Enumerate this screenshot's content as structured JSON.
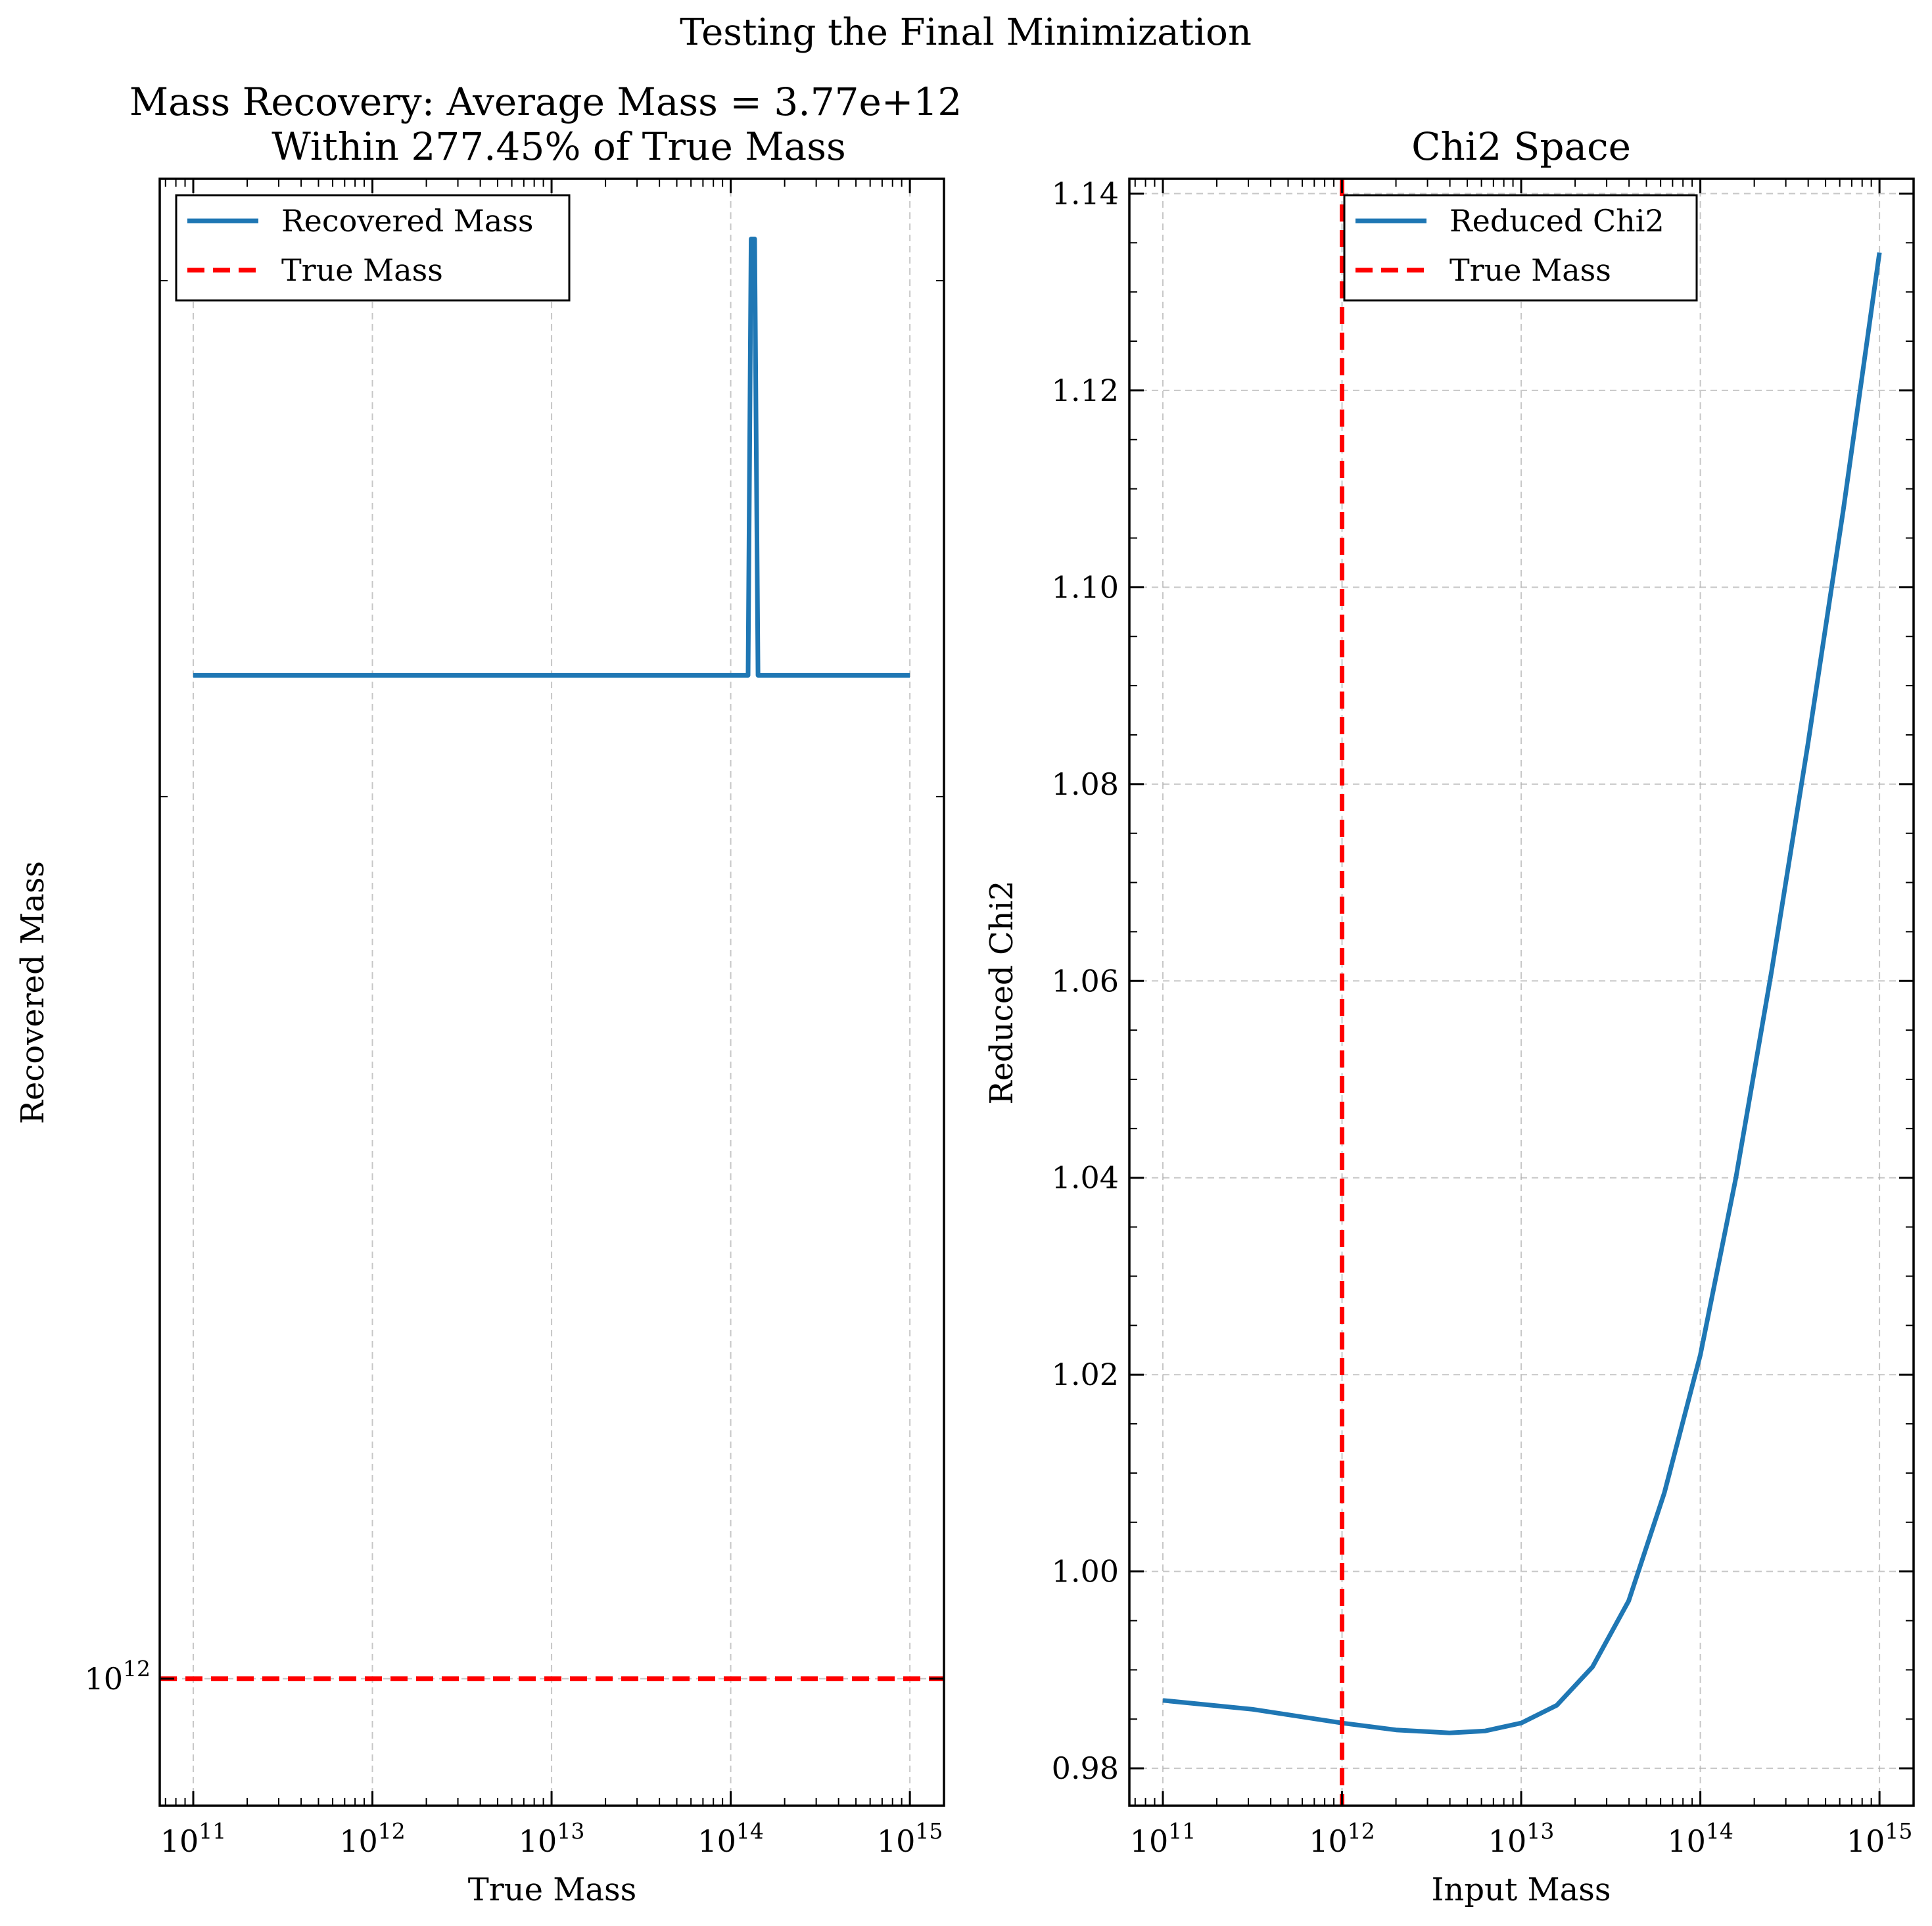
{
  "suptitle": "Testing the Final Minimization",
  "colors": {
    "series": "#1f77b4",
    "true_mass": "#ff0000",
    "grid": "#b0b0b0",
    "axes": "#000000"
  },
  "chart_data": [
    {
      "type": "line",
      "title_line1": "Mass Recovery: Average Mass = 3.77e+12",
      "title_line2": "Within 277.45% of True Mass",
      "xlabel": "True Mass",
      "ylabel": "Recovered Mass",
      "xscale": "log",
      "yscale": "log",
      "xlim": [
        65000000000.0,
        1550000000000000.0
      ],
      "ylim": [
        905000000000.0,
        3250000000000.0
      ],
      "xticks": [
        100000000000.0,
        1000000000000.0,
        10000000000000.0,
        100000000000000.0,
        1000000000000000.0
      ],
      "xtick_labels": [
        {
          "base": "10",
          "exp": "11"
        },
        {
          "base": "10",
          "exp": "12"
        },
        {
          "base": "10",
          "exp": "13"
        },
        {
          "base": "10",
          "exp": "14"
        },
        {
          "base": "10",
          "exp": "15"
        }
      ],
      "yticks": [
        1000000000000.0
      ],
      "ytick_labels": [
        {
          "base": "10",
          "exp": "12"
        }
      ],
      "grid": true,
      "legend_position": "upper left",
      "series": [
        {
          "name": "Recovered Mass",
          "style": "solid",
          "x": [
            100000000000.0,
            125000000000000.0,
            130000000000000.0,
            136000000000000.0,
            142000000000000.0,
            1000000000000000.0
          ],
          "y": [
            2200000000000.0,
            2200000000000.0,
            3100000000000.0,
            3100000000000.0,
            2200000000000.0,
            2200000000000.0
          ]
        }
      ],
      "hlines": [
        {
          "name": "True Mass",
          "style": "dashed",
          "y": 1000000000000.0
        }
      ]
    },
    {
      "type": "line",
      "title": "Chi2 Space",
      "xlabel": "Input Mass",
      "ylabel": "Reduced Chi2",
      "xscale": "log",
      "yscale": "linear",
      "xlim": [
        65000000000.0,
        1550000000000000.0
      ],
      "ylim": [
        0.9762,
        1.1415
      ],
      "xticks": [
        100000000000.0,
        1000000000000.0,
        10000000000000.0,
        100000000000000.0,
        1000000000000000.0
      ],
      "xtick_labels": [
        {
          "base": "10",
          "exp": "11"
        },
        {
          "base": "10",
          "exp": "12"
        },
        {
          "base": "10",
          "exp": "13"
        },
        {
          "base": "10",
          "exp": "14"
        },
        {
          "base": "10",
          "exp": "15"
        }
      ],
      "yticks": [
        0.98,
        1.0,
        1.02,
        1.04,
        1.06,
        1.08,
        1.1,
        1.12,
        1.14
      ],
      "ytick_labels": [
        "0.98",
        "1.00",
        "1.02",
        "1.04",
        "1.06",
        "1.08",
        "1.10",
        "1.12",
        "1.14"
      ],
      "grid": true,
      "legend_position": "upper center",
      "series": [
        {
          "name": "Reduced Chi2",
          "style": "solid",
          "x": [
            100000000000.0,
            316000000000.0,
            1000000000000.0,
            2000000000000.0,
            3980000000000.0,
            6300000000000.0,
            10000000000000.0,
            15800000000000.0,
            25000000000000.0,
            39800000000000.0,
            63000000000000.0,
            100000000000000.0,
            158000000000000.0,
            250000000000000.0,
            398000000000000.0,
            630000000000000.0,
            1000000000000000.0
          ],
          "y": [
            0.9869,
            0.986,
            0.9846,
            0.9839,
            0.9836,
            0.9838,
            0.9846,
            0.9864,
            0.9903,
            0.997,
            1.008,
            1.022,
            1.04,
            1.061,
            1.084,
            1.108,
            1.134
          ]
        }
      ],
      "vlines": [
        {
          "name": "True Mass",
          "style": "dashed",
          "x": 1000000000000.0
        }
      ]
    }
  ]
}
